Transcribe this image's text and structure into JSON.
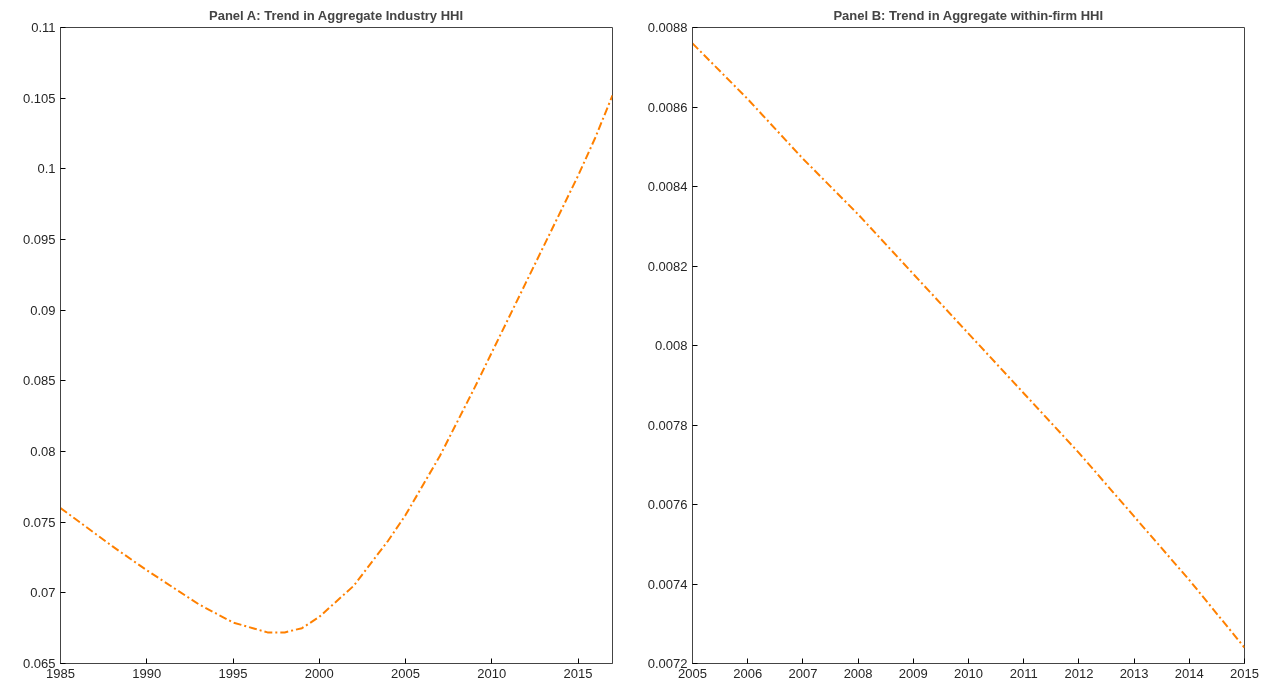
{
  "chart_data": [
    {
      "type": "line",
      "title": "Panel A: Trend in Aggregate Industry HHI",
      "x": [
        1985,
        1988,
        1990,
        1993,
        1995,
        1997,
        1998,
        1999,
        2000,
        2002,
        2004,
        2005,
        2007,
        2009,
        2010,
        2012,
        2014,
        2015,
        2016,
        2017
      ],
      "series": [
        {
          "color": "#ff8000",
          "values": [
            0.076,
            0.0733,
            0.0716,
            0.0692,
            0.0679,
            0.0672,
            0.0672,
            0.0675,
            0.0683,
            0.0705,
            0.0737,
            0.0755,
            0.0797,
            0.0845,
            0.087,
            0.092,
            0.097,
            0.0995,
            0.1022,
            0.1052
          ]
        }
      ],
      "xlim": [
        1985,
        2017
      ],
      "xticks": [
        1985,
        1990,
        1995,
        2000,
        2005,
        2010,
        2015
      ],
      "ylim": [
        0.065,
        0.11
      ],
      "yticks": [
        0.065,
        0.07,
        0.075,
        0.08,
        0.085,
        0.09,
        0.095,
        0.1,
        0.105,
        0.11
      ],
      "grid": false,
      "line_style": "dashdot"
    },
    {
      "type": "line",
      "title": "Panel B: Trend in Aggregate within-firm HHI",
      "x": [
        2005,
        2006,
        2007,
        2008,
        2009,
        2010,
        2011,
        2012,
        2013,
        2014,
        2015
      ],
      "series": [
        {
          "color": "#ff8000",
          "values": [
            0.00876,
            0.00862,
            0.00847,
            0.00833,
            0.00818,
            0.00803,
            0.00788,
            0.00773,
            0.00757,
            0.00741,
            0.00724
          ]
        }
      ],
      "xlim": [
        2005,
        2015
      ],
      "xticks": [
        2005,
        2006,
        2007,
        2008,
        2009,
        2010,
        2011,
        2012,
        2013,
        2014,
        2015
      ],
      "ylim": [
        0.0072,
        0.0088
      ],
      "yticks": [
        0.0072,
        0.0074,
        0.0076,
        0.0078,
        0.008,
        0.0082,
        0.0084,
        0.0086,
        0.0088
      ],
      "grid": false,
      "line_style": "dashdot"
    }
  ]
}
